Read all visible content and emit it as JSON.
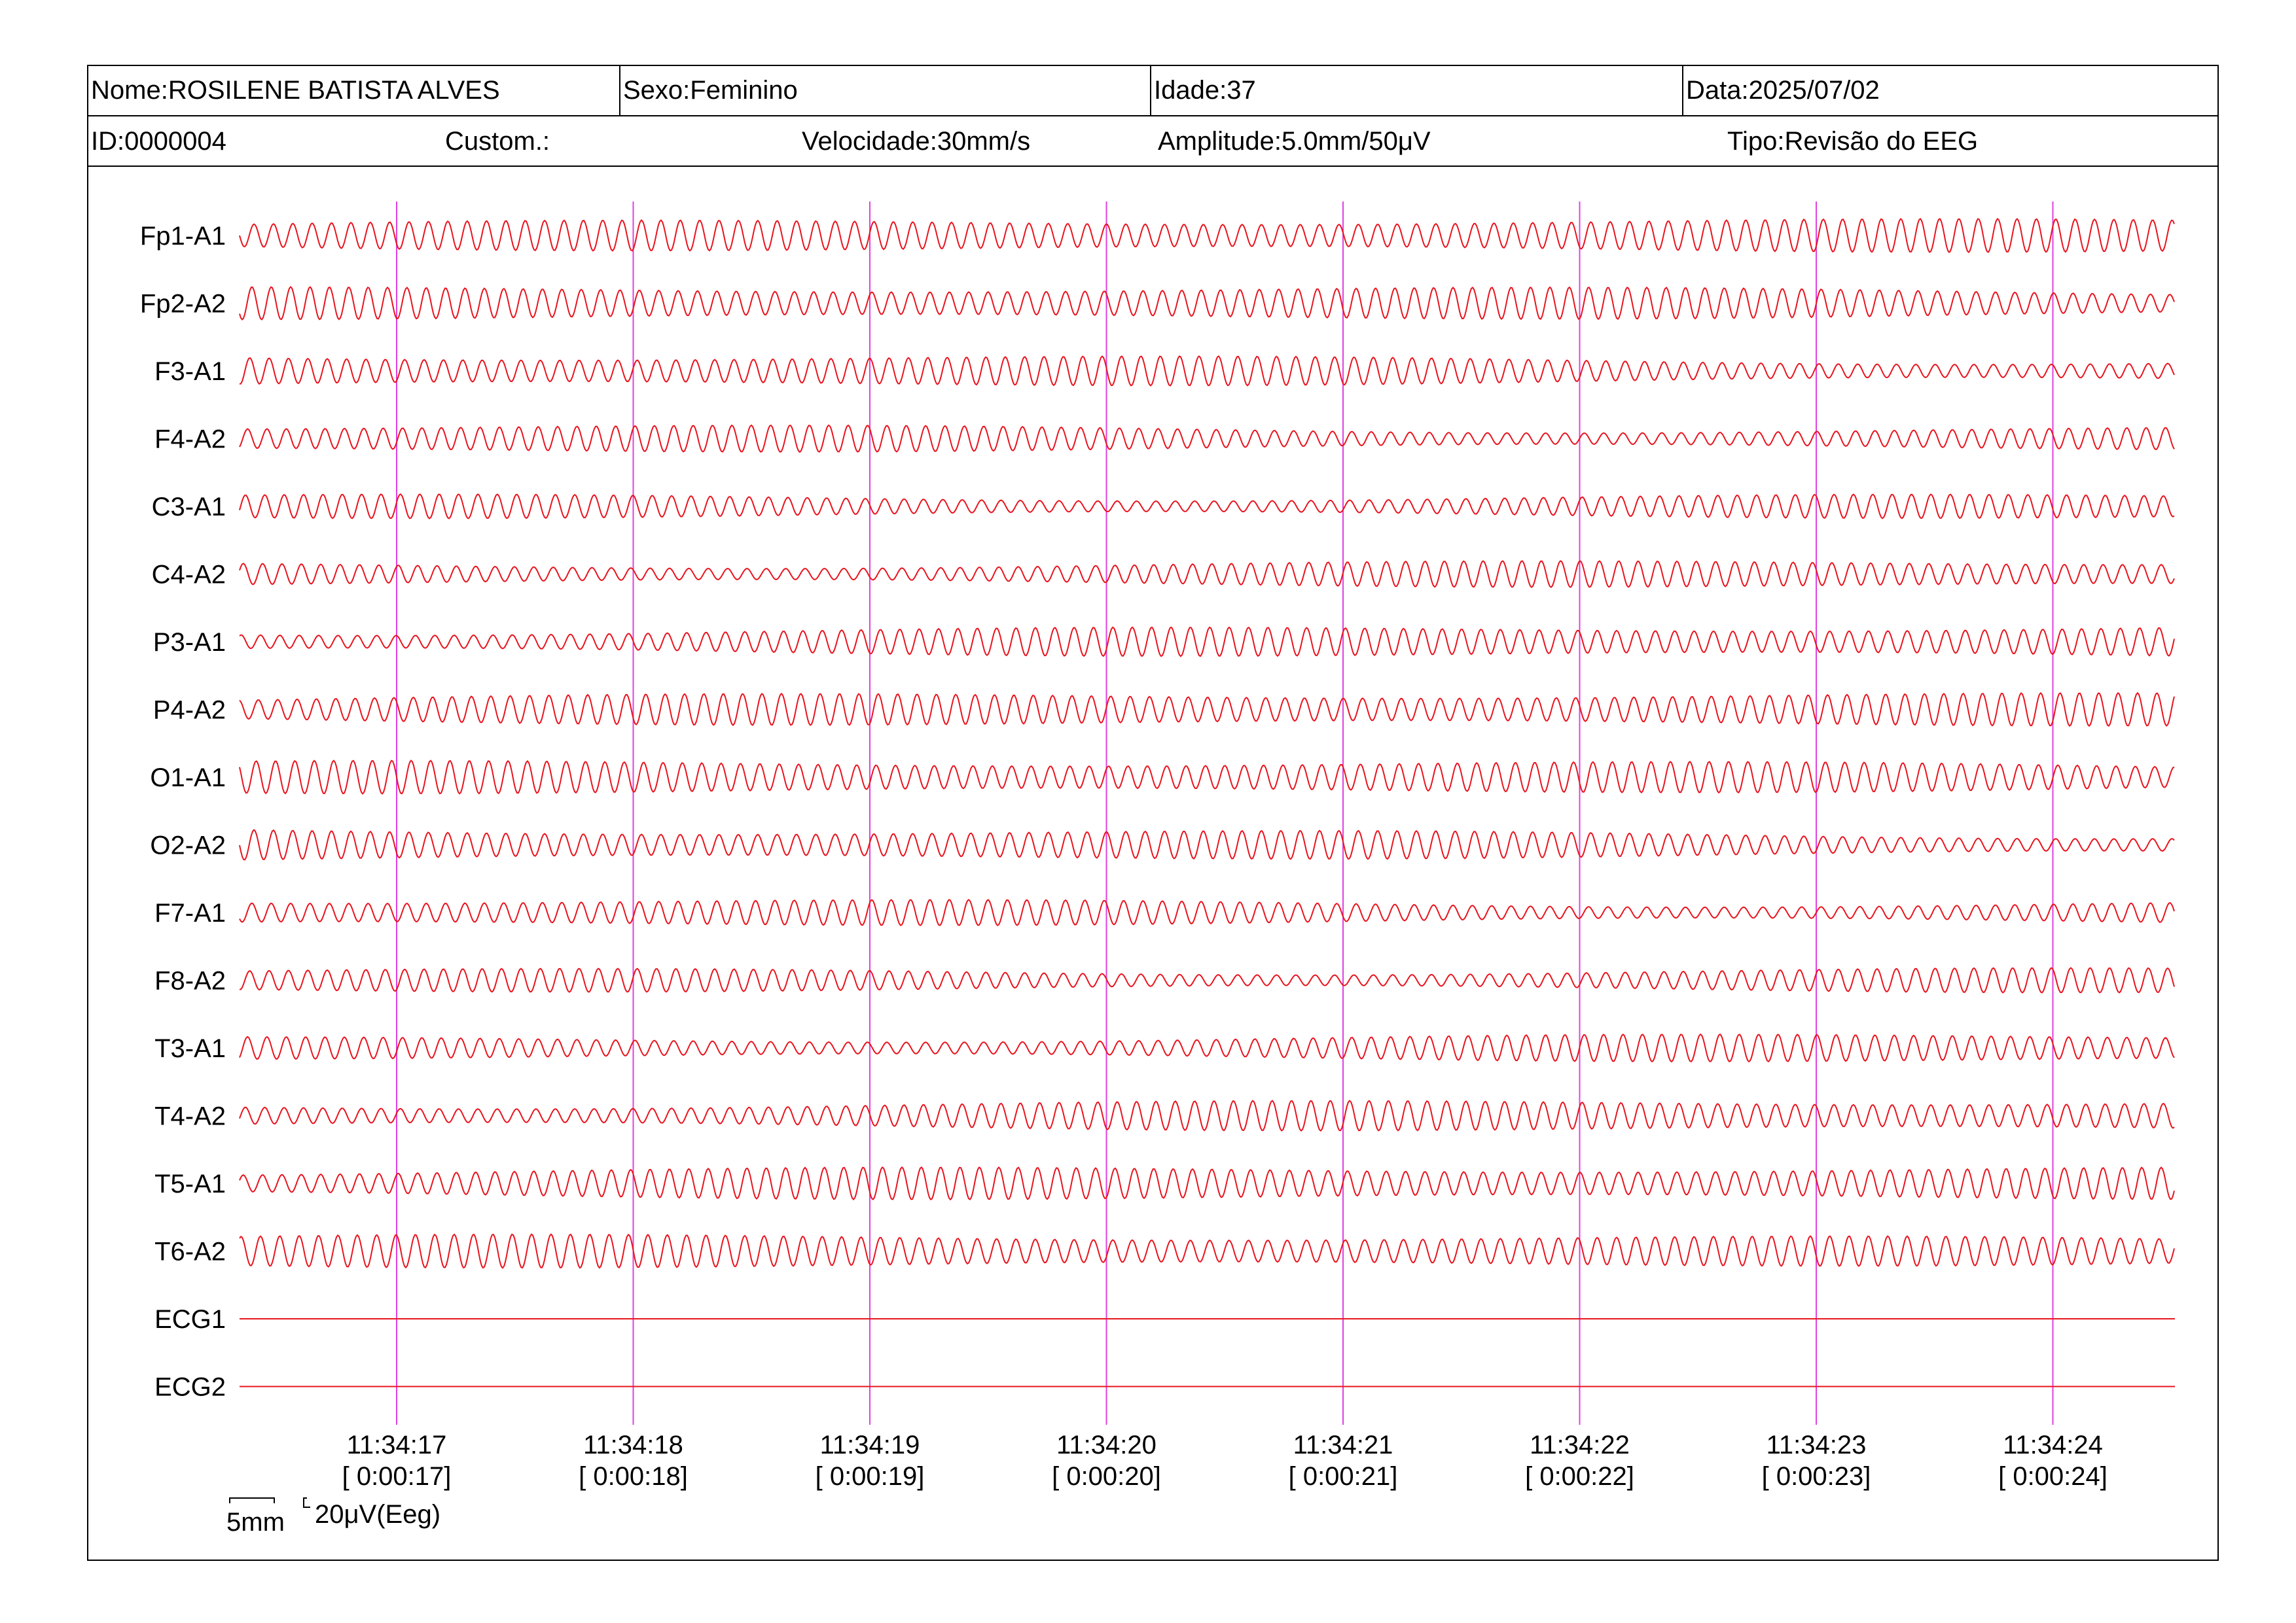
{
  "header": {
    "nome": "Nome:ROSILENE BATISTA ALVES",
    "sexo": "Sexo:Feminino",
    "idade": "Idade:37",
    "data": "Data:2025/07/02",
    "id": "ID:0000004",
    "custom": "Custom.:",
    "velocidade": "Velocidade:30mm/s",
    "amplitude": "Amplitude:5.0mm/50μV",
    "tipo": "Tipo:Revisão do EEG"
  },
  "colors": {
    "trace": "#e8141e",
    "marker": "#e040e0",
    "border": "#000000"
  },
  "channels": [
    {
      "label": "Fp1-A1",
      "type": "eeg"
    },
    {
      "label": "Fp2-A2",
      "type": "eeg"
    },
    {
      "label": "F3-A1",
      "type": "eeg"
    },
    {
      "label": "F4-A2",
      "type": "eeg"
    },
    {
      "label": "C3-A1",
      "type": "eeg"
    },
    {
      "label": "C4-A2",
      "type": "eeg"
    },
    {
      "label": "P3-A1",
      "type": "eeg"
    },
    {
      "label": "P4-A2",
      "type": "eeg"
    },
    {
      "label": "O1-A1",
      "type": "eeg"
    },
    {
      "label": "O2-A2",
      "type": "eeg"
    },
    {
      "label": "F7-A1",
      "type": "eeg"
    },
    {
      "label": "F8-A2",
      "type": "eeg"
    },
    {
      "label": "T3-A1",
      "type": "eeg"
    },
    {
      "label": "T4-A2",
      "type": "eeg"
    },
    {
      "label": "T5-A1",
      "type": "eeg"
    },
    {
      "label": "T6-A2",
      "type": "eeg"
    },
    {
      "label": "ECG1",
      "type": "flat"
    },
    {
      "label": "ECG2",
      "type": "flat"
    }
  ],
  "time_markers": [
    {
      "clock": "11:34:17",
      "elapsed": "[ 0:00:17]"
    },
    {
      "clock": "11:34:18",
      "elapsed": "[ 0:00:18]"
    },
    {
      "clock": "11:34:19",
      "elapsed": "[ 0:00:19]"
    },
    {
      "clock": "11:34:20",
      "elapsed": "[ 0:00:20]"
    },
    {
      "clock": "11:34:21",
      "elapsed": "[ 0:00:21]"
    },
    {
      "clock": "11:34:22",
      "elapsed": "[ 0:00:22]"
    },
    {
      "clock": "11:34:23",
      "elapsed": "[ 0:00:23]"
    },
    {
      "clock": "11:34:24",
      "elapsed": "[ 0:00:24]"
    }
  ],
  "scale": {
    "time": "5mm",
    "amplitude": "20μV(Eeg)"
  }
}
